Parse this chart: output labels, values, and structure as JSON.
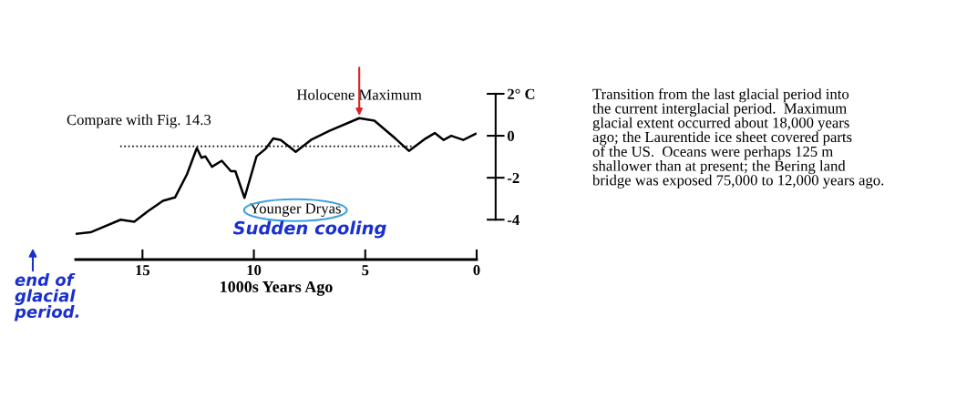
{
  "chart_data": {
    "type": "line",
    "xlabel": "1000s Years Ago",
    "xlim": [
      18,
      0
    ],
    "xticks": [
      15,
      10,
      5,
      0
    ],
    "ylim": [
      -5.9,
      2
    ],
    "yticks": [
      {
        "value": 2,
        "label": "2° C"
      },
      0,
      {
        "value": -2,
        "label": "-2"
      },
      {
        "value": -4,
        "label": "-4"
      }
    ],
    "grid": false,
    "legend": false,
    "marker": "none",
    "series": [
      {
        "color": "#000000",
        "line_style": "solid",
        "x": [
          17.95,
          17.33,
          15.98,
          15.37,
          14.76,
          14.08,
          13.54,
          13.0,
          12.56,
          12.35,
          12.18,
          11.88,
          11.44,
          11.03,
          10.83,
          10.42,
          9.88,
          9.47,
          9.13,
          8.79,
          8.12,
          7.44,
          6.63,
          5.27,
          4.59,
          3.65,
          3.04,
          2.29,
          1.88,
          1.48,
          1.14,
          0.6,
          0.05
        ],
        "values": [
          -4.67,
          -4.6,
          -4.0,
          -4.1,
          -3.6,
          -3.1,
          -2.94,
          -1.83,
          -0.58,
          -1.05,
          -0.98,
          -1.48,
          -1.19,
          -1.69,
          -1.69,
          -2.96,
          -0.98,
          -0.62,
          -0.13,
          -0.2,
          -0.77,
          -0.2,
          0.23,
          0.84,
          0.72,
          -0.13,
          -0.72,
          -0.13,
          0.13,
          -0.2,
          0.0,
          -0.2,
          0.09
        ]
      },
      {
        "color": "#000000",
        "line_style": "dotted",
        "x": [
          16.0,
          2.8
        ],
        "values": [
          -0.5,
          -0.5
        ]
      }
    ],
    "annotations": [
      "Compare with Fig. 14.3",
      {
        "text": "Holocene Maximum",
        "x": 5.27,
        "y": 0.84
      },
      {
        "text": "Younger Dryas",
        "x": 10.42,
        "y": -2.96
      },
      "Sudden cooling",
      "end of glacial period.",
      "Transition from the last glacial period into\nthe current interglacial period.  Maximum\nglacial extent occurred about 18,000 years\nago; the Laurentide ice sheet covered parts\nof the US.  Oceans were perhaps 125 m\nshallower than at present; the Bering land\nbridge was exposed 75,000 to 12,000 years ago."
    ]
  }
}
